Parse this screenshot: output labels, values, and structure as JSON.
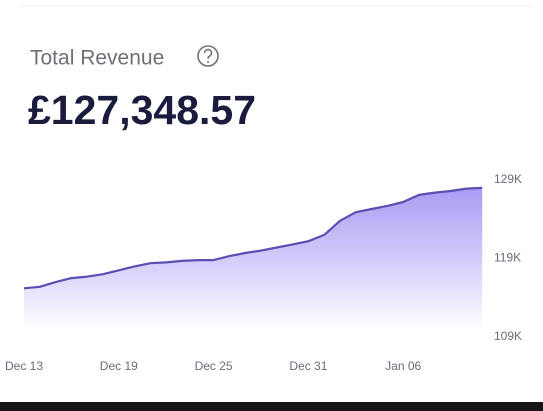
{
  "chart_data": {
    "type": "area",
    "title": "Total Revenue",
    "subtitle": "£127,348.57",
    "categories": [
      "Dec 13",
      null,
      null,
      null,
      null,
      null,
      "Dec 19",
      null,
      null,
      null,
      null,
      null,
      "Dec 25",
      null,
      null,
      null,
      null,
      null,
      "Dec 31",
      null,
      null,
      null,
      null,
      null,
      "Jan 06",
      null,
      null,
      null,
      null,
      null
    ],
    "values": [
      115200,
      115400,
      116000,
      116500,
      116700,
      117000,
      117500,
      118000,
      118400,
      118500,
      118700,
      118800,
      118800,
      119300,
      119700,
      120000,
      120400,
      120800,
      121200,
      122000,
      123800,
      124900,
      125300,
      125700,
      126200,
      127100,
      127400,
      127600,
      127900,
      128000
    ],
    "color": "#5a4fb3",
    "ylim": [
      109000,
      129000
    ],
    "yticks": [
      {
        "value": 109000,
        "label": "109K"
      },
      {
        "value": 119000,
        "label": "119K"
      },
      {
        "value": 129000,
        "label": "129K"
      }
    ],
    "y_axis_side": "right",
    "grid": false
  }
}
